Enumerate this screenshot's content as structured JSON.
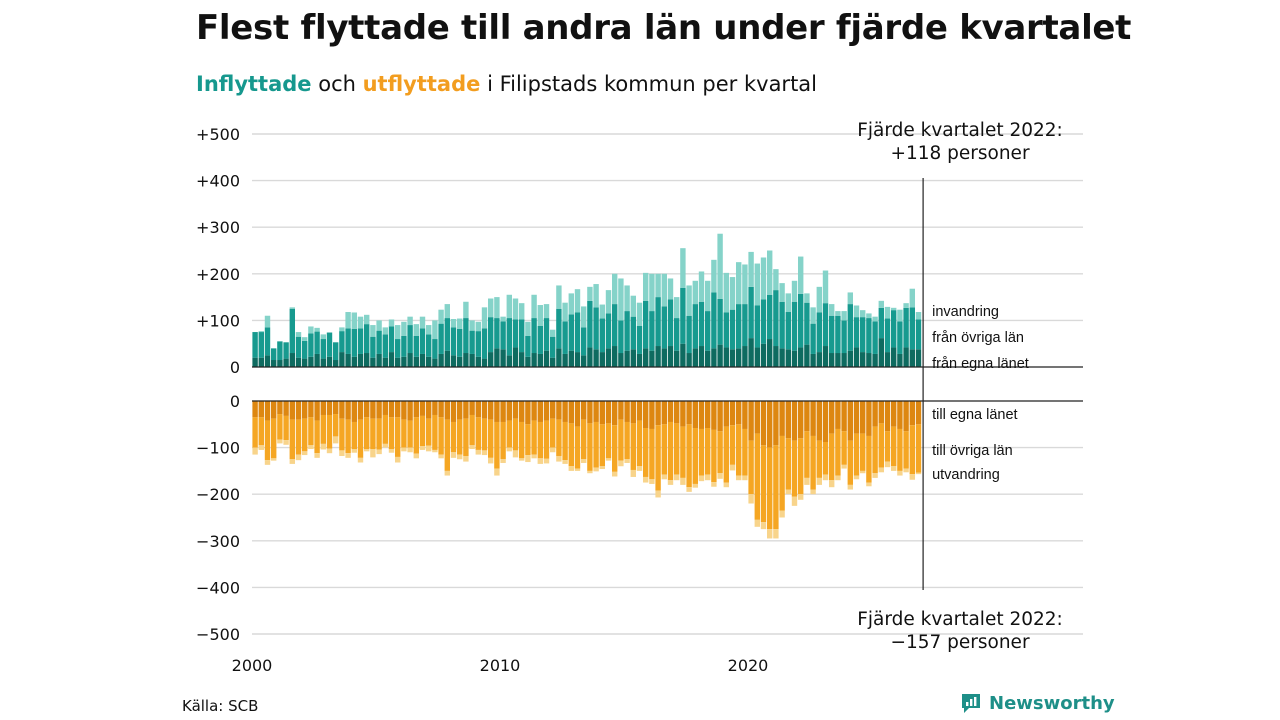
{
  "title": "Flest flyttade till andra län under fjärde kvartalet",
  "subtitle": {
    "in_word": "Inflyttade",
    "and_word": " och ",
    "out_word": "utflyttade",
    "rest": " i Filipstads kommun per kvartal"
  },
  "source": "Källa: SCB",
  "brand": {
    "name": "Newsworthy",
    "icon": "newsworthy-logo-icon"
  },
  "colors": {
    "in_same_county": "#0e6b60",
    "in_other_counties": "#179a8f",
    "in_immigration": "#85d3c9",
    "out_same_county": "#dd8711",
    "out_other_counties": "#f5a623",
    "out_emigration": "#f8d48b",
    "grid": "#d9d9d9",
    "brand": "#1e8f88"
  },
  "chart_data": {
    "type": "bar",
    "stacked": true,
    "first_quarter": "2000 Q1",
    "quarters_per_year": 4,
    "x_ticks": [
      "2000",
      "2010",
      "2020"
    ],
    "inflow_axis": {
      "ylim": [
        0,
        500
      ],
      "ticks": [
        "0",
        "+100",
        "+200",
        "+300",
        "+400",
        "+500"
      ]
    },
    "outflow_axis": {
      "ylim": [
        -500,
        0
      ],
      "ticks": [
        "0",
        "−100",
        "−200",
        "−300",
        "−400",
        "−500"
      ]
    },
    "grid": true,
    "series_labels": {
      "in_same_county": "från egna länet",
      "in_other_counties": "från övriga län",
      "in_immigration": "invandring",
      "out_same_county": "till egna länet",
      "out_other_counties": "till övriga län",
      "out_emigration": "utvandring"
    },
    "annotation_top": [
      "Fjärde kvartalet 2022:",
      "+118 personer"
    ],
    "annotation_bottom": [
      "Fjärde kvartalet 2022:",
      "−157 personer"
    ],
    "inflow_same_county": [
      20,
      20,
      25,
      15,
      15,
      18,
      30,
      20,
      18,
      22,
      28,
      18,
      22,
      15,
      32,
      28,
      22,
      28,
      30,
      20,
      28,
      20,
      32,
      20,
      22,
      30,
      22,
      28,
      22,
      18,
      28,
      35,
      25,
      22,
      30,
      28,
      22,
      18,
      32,
      40,
      38,
      25,
      42,
      32,
      22,
      30,
      28,
      35,
      20,
      40,
      28,
      35,
      32,
      25,
      42,
      38,
      32,
      40,
      45,
      30,
      35,
      38,
      28,
      40,
      35,
      45,
      40,
      45,
      35,
      50,
      30,
      40,
      45,
      35,
      40,
      48,
      42,
      38,
      40,
      45,
      62,
      42,
      50,
      60,
      45,
      40,
      38,
      35,
      42,
      48,
      28,
      32,
      45,
      30,
      30,
      30,
      35,
      42,
      32,
      30,
      28,
      62,
      32,
      42,
      28,
      42,
      38,
      38
    ],
    "inflow_other_counties": [
      55,
      55,
      60,
      25,
      40,
      35,
      95,
      45,
      38,
      50,
      48,
      42,
      52,
      38,
      45,
      55,
      60,
      55,
      62,
      45,
      50,
      50,
      55,
      40,
      45,
      60,
      45,
      55,
      48,
      42,
      65,
      70,
      60,
      60,
      75,
      50,
      55,
      65,
      75,
      65,
      60,
      80,
      60,
      70,
      45,
      75,
      60,
      70,
      45,
      85,
      70,
      78,
      85,
      60,
      100,
      90,
      72,
      75,
      90,
      70,
      85,
      70,
      60,
      102,
      85,
      105,
      90,
      100,
      70,
      120,
      80,
      95,
      95,
      85,
      120,
      98,
      75,
      85,
      95,
      90,
      110,
      90,
      95,
      95,
      120,
      100,
      80,
      105,
      115,
      90,
      65,
      85,
      92,
      80,
      80,
      70,
      100,
      65,
      75,
      75,
      70,
      65,
      72,
      80,
      70,
      85,
      90,
      64
    ],
    "inflow_immigration": [
      0,
      2,
      25,
      0,
      0,
      0,
      3,
      10,
      8,
      15,
      8,
      10,
      0,
      0,
      8,
      35,
      35,
      25,
      20,
      25,
      22,
      15,
      15,
      30,
      30,
      18,
      25,
      25,
      20,
      40,
      30,
      30,
      18,
      22,
      35,
      22,
      20,
      45,
      40,
      45,
      10,
      50,
      45,
      35,
      30,
      50,
      45,
      30,
      15,
      50,
      40,
      45,
      50,
      45,
      30,
      50,
      30,
      50,
      65,
      90,
      55,
      45,
      50,
      60,
      80,
      50,
      70,
      45,
      45,
      85,
      65,
      50,
      65,
      65,
      70,
      140,
      85,
      70,
      90,
      85,
      75,
      90,
      90,
      95,
      45,
      40,
      40,
      45,
      80,
      20,
      35,
      55,
      70,
      25,
      10,
      20,
      25,
      25,
      15,
      10,
      10,
      15,
      25,
      5,
      25,
      10,
      40,
      16
    ],
    "outflow_same_county": [
      35,
      35,
      42,
      38,
      28,
      32,
      40,
      40,
      38,
      35,
      42,
      30,
      30,
      28,
      38,
      40,
      45,
      40,
      35,
      38,
      38,
      30,
      35,
      35,
      40,
      42,
      35,
      32,
      38,
      30,
      35,
      40,
      45,
      40,
      38,
      30,
      35,
      38,
      40,
      45,
      45,
      42,
      38,
      45,
      50,
      42,
      45,
      42,
      38,
      40,
      45,
      48,
      55,
      40,
      48,
      45,
      50,
      48,
      52,
      40,
      45,
      48,
      42,
      58,
      60,
      52,
      50,
      45,
      48,
      55,
      50,
      58,
      60,
      58,
      62,
      65,
      55,
      52,
      50,
      60,
      85,
      70,
      95,
      100,
      95,
      75,
      80,
      85,
      80,
      65,
      75,
      85,
      88,
      70,
      60,
      65,
      85,
      70,
      70,
      75,
      55,
      48,
      65,
      55,
      60,
      65,
      52,
      50
    ],
    "outflow_other_counties": [
      65,
      60,
      85,
      85,
      55,
      52,
      85,
      75,
      70,
      60,
      70,
      62,
      72,
      48,
      68,
      72,
      58,
      82,
      68,
      65,
      66,
      62,
      68,
      85,
      60,
      58,
      78,
      65,
      58,
      75,
      80,
      110,
      65,
      75,
      80,
      65,
      70,
      68,
      82,
      100,
      80,
      58,
      68,
      78,
      66,
      73,
      78,
      82,
      62,
      78,
      82,
      92,
      90,
      85,
      102,
      98,
      90,
      75,
      100,
      88,
      80,
      100,
      98,
      105,
      108,
      140,
      108,
      125,
      110,
      110,
      135,
      120,
      100,
      100,
      112,
      90,
      120,
      85,
      110,
      100,
      115,
      185,
      165,
      175,
      180,
      160,
      110,
      120,
      120,
      100,
      115,
      80,
      70,
      100,
      100,
      72,
      95,
      90,
      80,
      100,
      100,
      95,
      65,
      85,
      90,
      80,
      105,
      104
    ],
    "outflow_emigration": [
      15,
      10,
      10,
      5,
      8,
      10,
      10,
      12,
      8,
      8,
      10,
      12,
      10,
      15,
      12,
      10,
      8,
      10,
      5,
      18,
      10,
      8,
      8,
      12,
      8,
      10,
      10,
      8,
      12,
      5,
      8,
      10,
      12,
      10,
      12,
      8,
      10,
      10,
      12,
      15,
      8,
      8,
      15,
      5,
      15,
      8,
      12,
      10,
      10,
      12,
      8,
      10,
      5,
      8,
      5,
      8,
      6,
      5,
      10,
      12,
      8,
      15,
      10,
      12,
      10,
      15,
      10,
      10,
      12,
      15,
      10,
      8,
      12,
      12,
      10,
      12,
      10,
      12,
      10,
      10,
      20,
      15,
      15,
      20,
      20,
      15,
      10,
      20,
      12,
      15,
      10,
      15,
      12,
      15,
      10,
      8,
      10,
      8,
      5,
      8,
      10,
      10,
      12,
      10,
      10,
      8,
      12,
      3
    ]
  }
}
